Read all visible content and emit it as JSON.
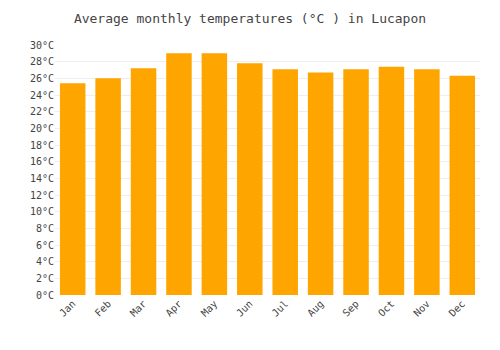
{
  "chart_data": {
    "type": "bar",
    "title": "Average monthly temperatures (°C ) in Lucapon",
    "categories": [
      "Jan",
      "Feb",
      "Mar",
      "Apr",
      "May",
      "Jun",
      "Jul",
      "Aug",
      "Sep",
      "Oct",
      "Nov",
      "Dec"
    ],
    "values": [
      25.4,
      26.0,
      27.2,
      29.0,
      29.0,
      27.8,
      27.1,
      26.7,
      27.1,
      27.4,
      27.1,
      26.3
    ],
    "color": "#FFA500",
    "ylim": [
      0,
      30
    ],
    "yticks": [
      {
        "value": 0,
        "label": "0°C"
      },
      {
        "value": 2,
        "label": "2°C"
      },
      {
        "value": 4,
        "label": "4°C"
      },
      {
        "value": 6,
        "label": "6°C"
      },
      {
        "value": 8,
        "label": "8°C"
      },
      {
        "value": 10,
        "label": "10°C"
      },
      {
        "value": 12,
        "label": "12°C"
      },
      {
        "value": 14,
        "label": "14°C"
      },
      {
        "value": 16,
        "label": "16°C"
      },
      {
        "value": 18,
        "label": "18°C"
      },
      {
        "value": 20,
        "label": "20°C"
      },
      {
        "value": 22,
        "label": "22°C"
      },
      {
        "value": 24,
        "label": "24°C"
      },
      {
        "value": 26,
        "label": "26°C"
      },
      {
        "value": 28,
        "label": "28°C"
      },
      {
        "value": 30,
        "label": "30°C"
      }
    ],
    "grid": true
  }
}
